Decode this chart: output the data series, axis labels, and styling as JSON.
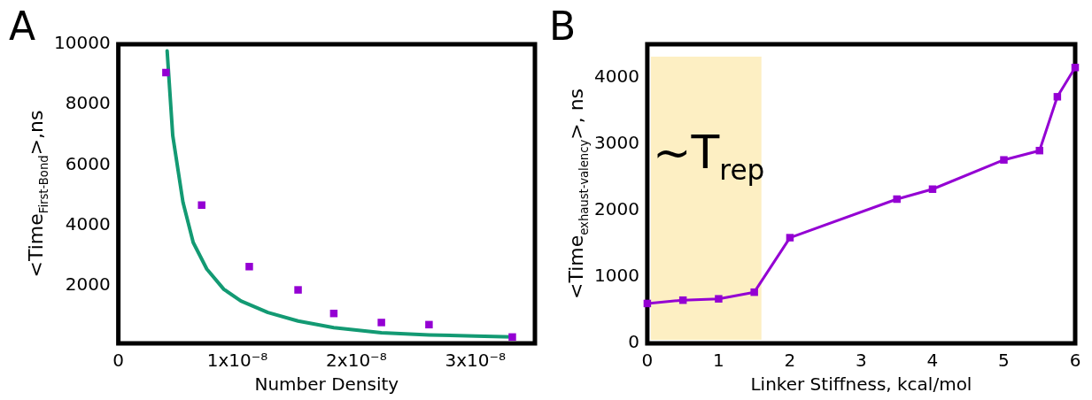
{
  "chart_data": [
    {
      "type": "scatter",
      "title": "A",
      "xlabel": "Number Density",
      "ylabel": "<Time$_{First-Bond}$>,ns",
      "xlim": [
        0,
        3.5e-08
      ],
      "xticks": [
        0,
        {
          "value": 1e-08,
          "label": "1x10⁻⁸"
        },
        {
          "value": 2e-08,
          "label": "2x10⁻⁸"
        },
        {
          "value": 3e-08,
          "label": "3x10⁻⁸"
        }
      ],
      "ylim": [
        100,
        10000
      ],
      "yticks": [
        2000,
        4000,
        6000,
        8000,
        10000
      ],
      "grid": false,
      "legend": false,
      "series": [
        {
          "marker": "square",
          "color": "#9400d3",
          "x": [
            4e-09,
            7e-09,
            1.1e-08,
            1.51e-08,
            1.81e-08,
            2.21e-08,
            2.61e-08,
            3.31e-08
          ],
          "values": [
            9060,
            4680,
            2640,
            1870,
            1090,
            790,
            720,
            310
          ]
        },
        {
          "type": "line",
          "marker": "none",
          "color": "#139a73",
          "x": [
            4.1e-09,
            4.57e-09,
            5.43e-09,
            6.29e-09,
            7.43e-09,
            8.86e-09,
            1.03e-08,
            1.257e-08,
            1.51e-08,
            1.81e-08,
            2.21e-08,
            2.61e-08,
            3e-08,
            3.31e-08
          ],
          "values": [
            9780,
            6980,
            4770,
            3440,
            2560,
            1890,
            1500,
            1120,
            840,
            620,
            450,
            380,
            340,
            310
          ]
        }
      ]
    },
    {
      "type": "line",
      "title": "B",
      "xlabel": "Linker Stiffness, kcal/mol",
      "ylabel": "<Time$_{exhaust-valency}$>, ns",
      "xlim": [
        0,
        6
      ],
      "xticks": [
        0,
        1,
        2,
        3,
        4,
        5,
        6
      ],
      "ylim": [
        0,
        4500
      ],
      "yticks": [
        0,
        1000,
        2000,
        3000,
        4000
      ],
      "grid": false,
      "legend": false,
      "bands": [
        {
          "axis": "x",
          "from": 0.05,
          "to": 1.6,
          "label": "~T$_{rep}$",
          "color": "#fdefc3"
        }
      ],
      "series": [
        {
          "marker": "square",
          "color": "#9400d3",
          "x": [
            0,
            0.5,
            1,
            1.5,
            2,
            3.5,
            4,
            5,
            5.5,
            5.75,
            6
          ],
          "values": [
            600,
            650,
            670,
            770,
            1590,
            2170,
            2320,
            2760,
            2900,
            3710,
            4150
          ]
        }
      ]
    }
  ]
}
